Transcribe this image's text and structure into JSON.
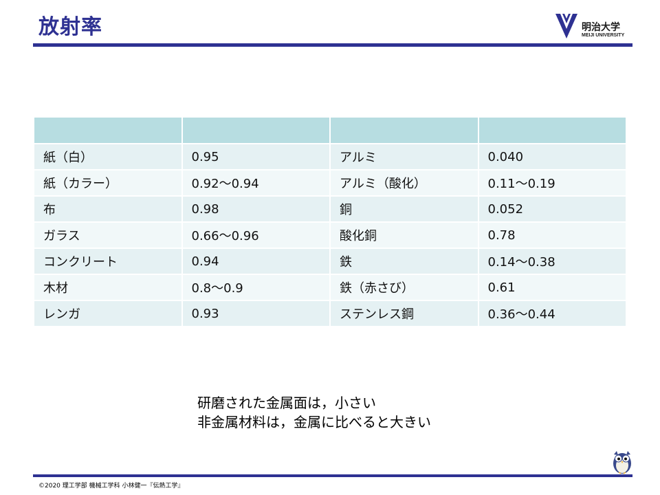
{
  "title": "放射率",
  "logo": {
    "name_jp": "明治大学",
    "name_en": "MEIJI UNIVERSITY"
  },
  "table": {
    "headers": [
      "",
      "",
      "",
      ""
    ],
    "rows": [
      [
        "紙（白）",
        "0.95",
        "アルミ",
        "0.040"
      ],
      [
        "紙（カラー）",
        "0.92～0.94",
        "アルミ（酸化）",
        "0.11～0.19"
      ],
      [
        "布",
        "0.98",
        "銅",
        "0.052"
      ],
      [
        "ガラス",
        "0.66～0.96",
        "酸化銅",
        "0.78"
      ],
      [
        "コンクリート",
        "0.94",
        "鉄",
        "0.14～0.38"
      ],
      [
        "木材",
        "0.8～0.9",
        "鉄（赤さび）",
        "0.61"
      ],
      [
        "レンガ",
        "0.93",
        "ステンレス鋼",
        "0.36～0.44"
      ]
    ]
  },
  "notes": [
    "研磨された金属面は，小さい",
    "非金属材料は，金属に比べると大きい"
  ],
  "footer": "©2020 理工学部 機械工学科 小林健一『伝熱工学』",
  "colors": {
    "accent": "#2e3192",
    "header_row": "#b7dde1",
    "row_odd": "#e5f1f3",
    "row_even": "#f1f8f9"
  }
}
